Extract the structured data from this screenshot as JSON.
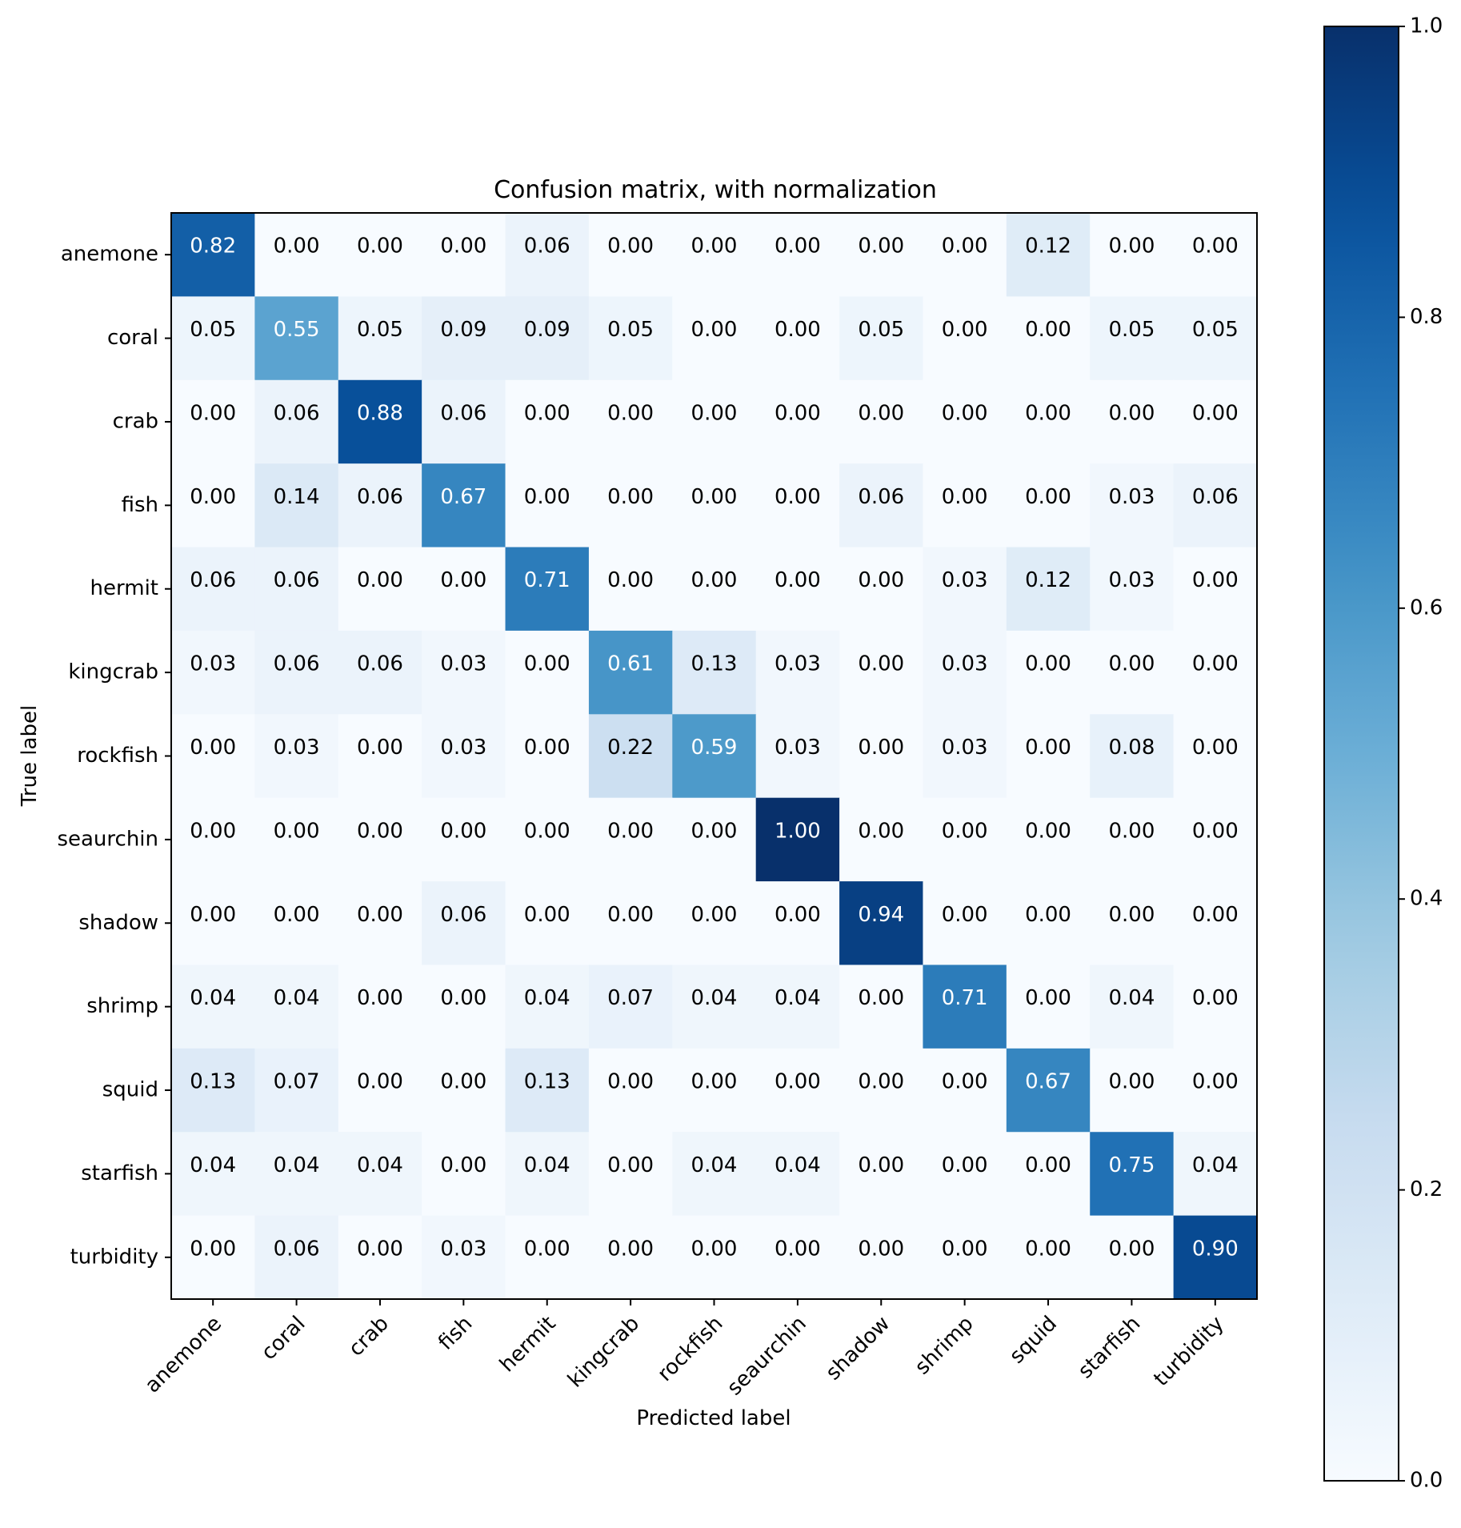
{
  "chart_data": {
    "type": "heatmap",
    "title": "Confusion matrix, with normalization",
    "xlabel": "Predicted label",
    "ylabel": "True label",
    "x_categories": [
      "anemone",
      "coral",
      "crab",
      "fish",
      "hermit",
      "kingcrab",
      "rockfish",
      "seaurchin",
      "shadow",
      "shrimp",
      "squid",
      "starfish",
      "turbidity"
    ],
    "y_categories": [
      "anemone",
      "coral",
      "crab",
      "fish",
      "hermit",
      "kingcrab",
      "rockfish",
      "seaurchin",
      "shadow",
      "shrimp",
      "squid",
      "starfish",
      "turbidity"
    ],
    "values": [
      [
        0.82,
        0.0,
        0.0,
        0.0,
        0.06,
        0.0,
        0.0,
        0.0,
        0.0,
        0.0,
        0.12,
        0.0,
        0.0
      ],
      [
        0.05,
        0.55,
        0.05,
        0.09,
        0.09,
        0.05,
        0.0,
        0.0,
        0.05,
        0.0,
        0.0,
        0.05,
        0.05
      ],
      [
        0.0,
        0.06,
        0.88,
        0.06,
        0.0,
        0.0,
        0.0,
        0.0,
        0.0,
        0.0,
        0.0,
        0.0,
        0.0
      ],
      [
        0.0,
        0.14,
        0.06,
        0.67,
        0.0,
        0.0,
        0.0,
        0.0,
        0.06,
        0.0,
        0.0,
        0.03,
        0.06
      ],
      [
        0.06,
        0.06,
        0.0,
        0.0,
        0.71,
        0.0,
        0.0,
        0.0,
        0.0,
        0.03,
        0.12,
        0.03,
        0.0
      ],
      [
        0.03,
        0.06,
        0.06,
        0.03,
        0.0,
        0.61,
        0.13,
        0.03,
        0.0,
        0.03,
        0.0,
        0.0,
        0.0
      ],
      [
        0.0,
        0.03,
        0.0,
        0.03,
        0.0,
        0.22,
        0.59,
        0.03,
        0.0,
        0.03,
        0.0,
        0.08,
        0.0
      ],
      [
        0.0,
        0.0,
        0.0,
        0.0,
        0.0,
        0.0,
        0.0,
        1.0,
        0.0,
        0.0,
        0.0,
        0.0,
        0.0
      ],
      [
        0.0,
        0.0,
        0.0,
        0.06,
        0.0,
        0.0,
        0.0,
        0.0,
        0.94,
        0.0,
        0.0,
        0.0,
        0.0
      ],
      [
        0.04,
        0.04,
        0.0,
        0.0,
        0.04,
        0.07,
        0.04,
        0.04,
        0.0,
        0.71,
        0.0,
        0.04,
        0.0
      ],
      [
        0.13,
        0.07,
        0.0,
        0.0,
        0.13,
        0.0,
        0.0,
        0.0,
        0.0,
        0.0,
        0.67,
        0.0,
        0.0
      ],
      [
        0.04,
        0.04,
        0.04,
        0.0,
        0.04,
        0.0,
        0.04,
        0.04,
        0.0,
        0.0,
        0.0,
        0.75,
        0.04
      ],
      [
        0.0,
        0.06,
        0.0,
        0.03,
        0.0,
        0.0,
        0.0,
        0.0,
        0.0,
        0.0,
        0.0,
        0.0,
        0.9
      ]
    ],
    "value_format": "0.00",
    "colormap": "Blues",
    "value_range": [
      0.0,
      1.0
    ],
    "colorbar": {
      "ticks": [
        0.0,
        0.2,
        0.4,
        0.6,
        0.8,
        1.0
      ],
      "tick_labels": [
        "0.0",
        "0.2",
        "0.4",
        "0.6",
        "0.8",
        "1.0"
      ]
    },
    "text_color_light": "#ffffff",
    "text_color_dark": "#000000",
    "text_threshold": 0.5
  }
}
